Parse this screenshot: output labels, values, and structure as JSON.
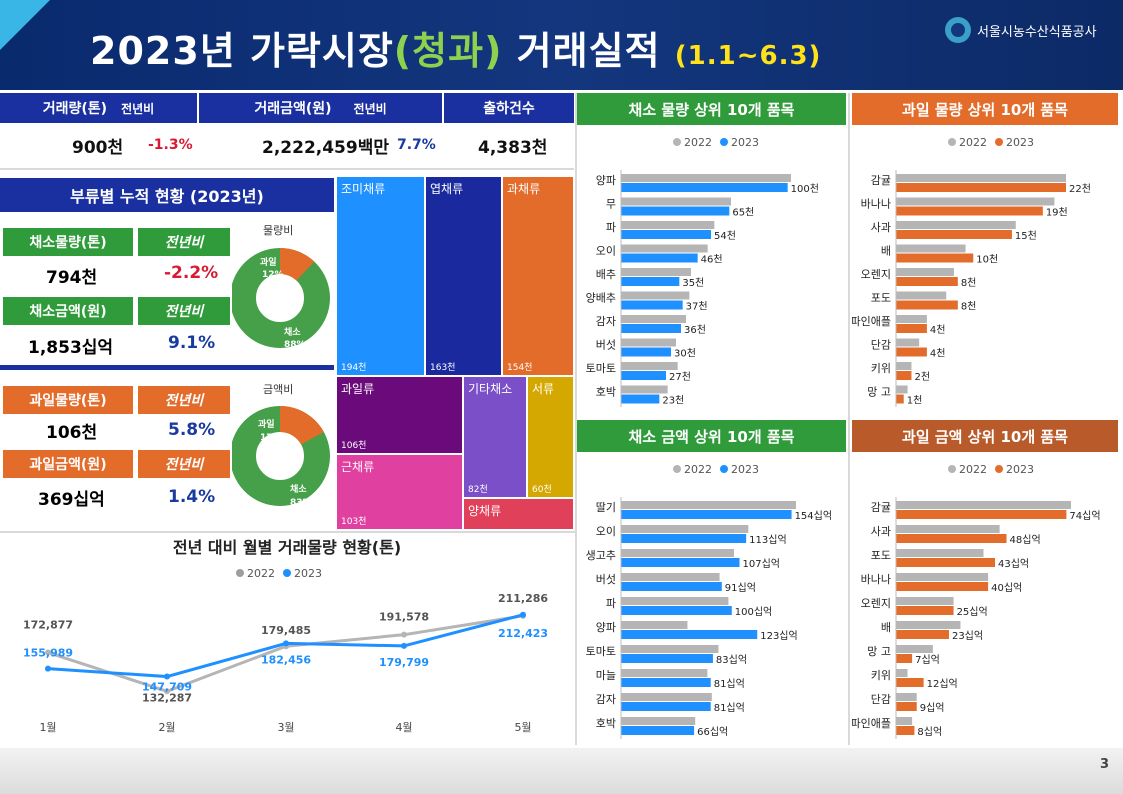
{
  "header": {
    "title_a": "2023년 가락시장",
    "title_green": "(청과)",
    "title_b": " 거래실적 ",
    "title_period": "(1.1~6.3)",
    "org": "서울시농수산식품공사"
  },
  "summary": {
    "vol_label": "거래량(톤)",
    "yoy_label": "전년비",
    "amt_label": "거래금액(원)",
    "amt_yoy_label": "전년비",
    "ship_label": "출하건수",
    "vol_value": "900천",
    "vol_yoy": "-1.3%",
    "amt_value": "2,222,459백만",
    "amt_yoy": "7.7%",
    "ship_value": "4,383천"
  },
  "category": {
    "title": "부류별 누적 현황 (2023년)",
    "veg_vol_label": "채소물량(톤)",
    "veg_vol_yoy_label": "전년비",
    "veg_vol": "794천",
    "veg_vol_yoy": "-2.2%",
    "veg_amt_label": "채소금액(원)",
    "veg_amt_yoy_label": "전년비",
    "veg_amt": "1,853십억",
    "veg_amt_yoy": "9.1%",
    "fruit_vol_label": "과일물량(톤)",
    "fruit_vol_yoy_label": "전년비",
    "fruit_vol": "106천",
    "fruit_vol_yoy": "5.8%",
    "fruit_amt_label": "과일금액(원)",
    "fruit_amt_yoy_label": "전년비",
    "fruit_amt": "369십억",
    "fruit_amt_yoy": "1.4%",
    "donut1_title": "물량비",
    "donut1_fruit": "과일",
    "donut1_fruit_pct": "12%",
    "donut1_veg": "채소",
    "donut1_veg_pct": "88%",
    "donut2_title": "금액비",
    "donut2_fruit": "과일",
    "donut2_fruit_pct": "17%",
    "donut2_veg": "채소",
    "donut2_veg_pct": "83%"
  },
  "treemap": [
    {
      "label": "조미채류",
      "value": "194천",
      "color": "#1e90ff"
    },
    {
      "label": "엽채류",
      "value": "163천",
      "color": "#1a2a9e"
    },
    {
      "label": "과채류",
      "value": "154천",
      "color": "#e36c2b"
    },
    {
      "label": "과일류",
      "value": "106천",
      "color": "#6b0a7a"
    },
    {
      "label": "근채류",
      "value": "103천",
      "color": "#e040a0"
    },
    {
      "label": "기타채소",
      "value": "82천",
      "color": "#7b4fc8"
    },
    {
      "label": "서류",
      "value": "60천",
      "color": "#d4a800"
    },
    {
      "label": "양채류",
      "value": "",
      "color": "#e0405a"
    }
  ],
  "colors": {
    "c2022": "#b5b5b5",
    "veg2023": "#1e90ff",
    "fruit2023": "#e36c2b",
    "green_hdr": "#2f9b3a",
    "orange_hdr": "#e36c2b",
    "brown_hdr": "#b85a2a"
  },
  "chart_data": [
    {
      "type": "line",
      "title": "전년 대비 월별 거래물량 현황(톤)",
      "categories": [
        "1월",
        "2월",
        "3월",
        "4월",
        "5월"
      ],
      "series": [
        {
          "name": "2022",
          "values": [
            172877,
            132287,
            179485,
            191578,
            211286
          ],
          "labels": [
            "172,877",
            "132,287",
            "179,485",
            "191,578",
            "211,286"
          ]
        },
        {
          "name": "2023",
          "values": [
            155989,
            147709,
            182456,
            179799,
            212423
          ],
          "labels": [
            "155,989",
            "147,709",
            "182,456",
            "179,799",
            "212,423"
          ]
        }
      ]
    },
    {
      "type": "bar",
      "title": "채소 물량 상위 10개 품목",
      "categories": [
        "양파",
        "무",
        "파",
        "오이",
        "배추",
        "양배추",
        "감자",
        "버섯",
        "토마토",
        "호박"
      ],
      "series": [
        {
          "name": "2022",
          "values": [
            102,
            66,
            56,
            52,
            42,
            41,
            39,
            33,
            34,
            28
          ]
        },
        {
          "name": "2023",
          "values": [
            100,
            65,
            54,
            46,
            35,
            37,
            36,
            30,
            27,
            23
          ]
        }
      ],
      "labels": [
        "100천",
        "65천",
        "54천",
        "46천",
        "35천",
        "37천",
        "36천",
        "30천",
        "27천",
        "23천"
      ]
    },
    {
      "type": "bar",
      "title": "과일 물량 상위 10개 품목",
      "categories": [
        "감귤",
        "바나나",
        "사과",
        "배",
        "오렌지",
        "포도",
        "파인애플",
        "단감",
        "키위",
        "망 고"
      ],
      "series": [
        {
          "name": "2022",
          "values": [
            22,
            20.5,
            15.5,
            9,
            7.5,
            6.5,
            4,
            3,
            2,
            1.5
          ]
        },
        {
          "name": "2023",
          "values": [
            22,
            19,
            15,
            10,
            8,
            8,
            4,
            4,
            2,
            1
          ]
        }
      ],
      "labels": [
        "22천",
        "19천",
        "15천",
        "10천",
        "8천",
        "8천",
        "4천",
        "4천",
        "2천",
        "1천"
      ]
    },
    {
      "type": "bar",
      "title": "채소 금액 상위 10개 품목",
      "categories": [
        "딸기",
        "오이",
        "생고추",
        "버섯",
        "파",
        "양파",
        "토마토",
        "마늘",
        "감자",
        "호박"
      ],
      "series": [
        {
          "name": "2022",
          "values": [
            158,
            115,
            102,
            89,
            97,
            60,
            88,
            78,
            82,
            67
          ]
        },
        {
          "name": "2023",
          "values": [
            154,
            113,
            107,
            91,
            100,
            123,
            83,
            81,
            81,
            66
          ]
        }
      ],
      "labels": [
        "154십억",
        "113십억",
        "107십억",
        "91십억",
        "100십억",
        "123십억",
        "83십억",
        "81십억",
        "81십억",
        "66십억"
      ]
    },
    {
      "type": "bar",
      "title": "과일 금액 상위 10개 품목",
      "categories": [
        "감귤",
        "사과",
        "포도",
        "바나나",
        "오렌지",
        "배",
        "망 고",
        "키위",
        "단감",
        "파인애플"
      ],
      "series": [
        {
          "name": "2022",
          "values": [
            76,
            45,
            38,
            40,
            25,
            28,
            16,
            5,
            9,
            7
          ]
        },
        {
          "name": "2023",
          "values": [
            74,
            48,
            43,
            40,
            25,
            23,
            7,
            12,
            9,
            8
          ]
        }
      ],
      "labels": [
        "74십억",
        "48십억",
        "43십억",
        "40십억",
        "25십억",
        "23십억",
        "7십억",
        "12십억",
        "9십억",
        "8십억"
      ]
    }
  ],
  "page_number": "3"
}
